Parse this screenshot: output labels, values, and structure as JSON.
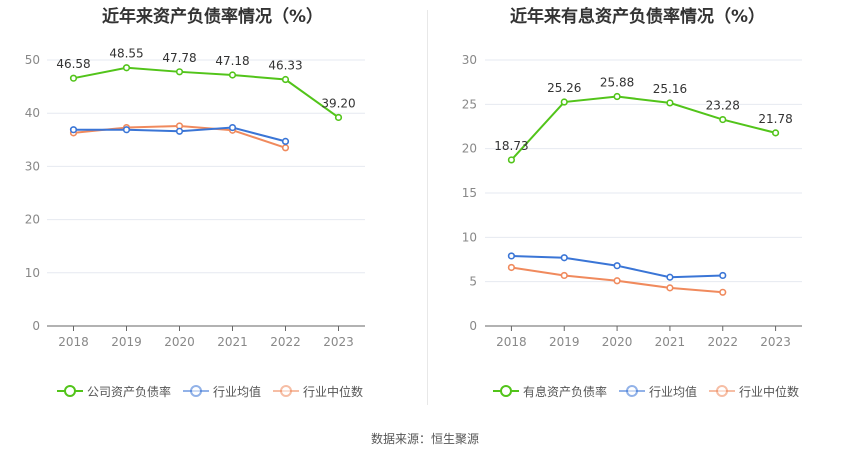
{
  "source": "数据来源：恒生聚源",
  "chart_data": [
    {
      "type": "line",
      "title": "近年来资产负债率情况（%）",
      "categories": [
        "2018",
        "2019",
        "2020",
        "2021",
        "2022",
        "2023"
      ],
      "ylim": [
        0,
        50
      ],
      "yticks": [
        "0",
        "10",
        "20",
        "30",
        "40",
        "50"
      ],
      "grid": true,
      "legend_position": "bottom",
      "series": [
        {
          "name": "公司资产负债率",
          "color": "#52c41a",
          "values": [
            46.58,
            48.55,
            47.78,
            47.18,
            46.33,
            39.2
          ],
          "labels": [
            "46.58",
            "48.55",
            "47.78",
            "47.18",
            "46.33",
            "39.20"
          ]
        },
        {
          "name": "行业均值",
          "color": "#3a75d6",
          "values": [
            36.9,
            36.9,
            36.6,
            37.3,
            34.7,
            null
          ]
        },
        {
          "name": "行业中位数",
          "color": "#f08a5d",
          "values": [
            36.3,
            37.3,
            37.6,
            36.8,
            33.5,
            null
          ]
        }
      ]
    },
    {
      "type": "line",
      "title": "近年来有息资产负债率情况（%）",
      "categories": [
        "2018",
        "2019",
        "2020",
        "2021",
        "2022",
        "2023"
      ],
      "ylim": [
        0,
        30
      ],
      "yticks": [
        "0",
        "5",
        "10",
        "15",
        "20",
        "25",
        "30"
      ],
      "grid": true,
      "legend_position": "bottom",
      "series": [
        {
          "name": "有息资产负债率",
          "color": "#52c41a",
          "values": [
            18.73,
            25.26,
            25.88,
            25.16,
            23.28,
            21.78
          ],
          "labels": [
            "18.73",
            "25.26",
            "25.88",
            "25.16",
            "23.28",
            "21.78"
          ]
        },
        {
          "name": "行业均值",
          "color": "#3a75d6",
          "values": [
            7.9,
            7.7,
            6.8,
            5.5,
            5.7,
            null
          ]
        },
        {
          "name": "行业中位数",
          "color": "#f08a5d",
          "values": [
            6.6,
            5.7,
            5.1,
            4.3,
            3.8,
            null
          ]
        }
      ]
    }
  ]
}
